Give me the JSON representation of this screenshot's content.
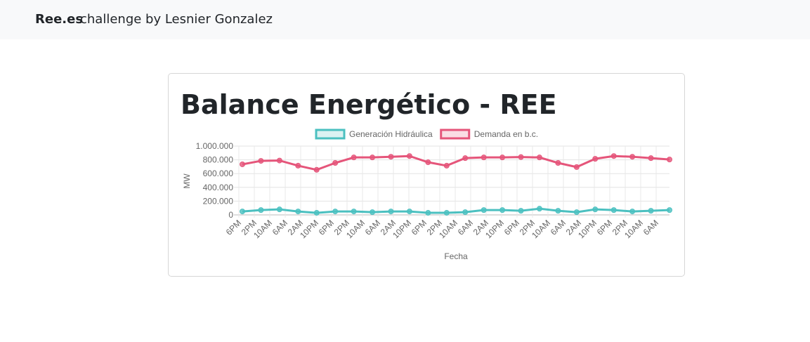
{
  "header": {
    "brand": "Ree.es",
    "text": "challenge by Lesnier Gonzalez"
  },
  "chart_data": {
    "type": "line",
    "title": "Balance Energético - REE",
    "xticks": [
      "6PM",
      "2PM",
      "10AM",
      "6AM",
      "2AM",
      "10PM",
      "6PM",
      "2PM",
      "10AM",
      "6AM",
      "2AM",
      "10PM",
      "6PM",
      "2PM",
      "10AM",
      "6AM",
      "2AM",
      "10PM",
      "6PM",
      "2PM",
      "10AM",
      "6AM",
      "2AM",
      "10PM",
      "6PM",
      "2PM",
      "10AM",
      "6AM"
    ],
    "x_label": "Fecha",
    "y_label": "MW",
    "ylim": [
      0,
      1000000
    ],
    "yticks": [
      0,
      {
        "value": 200000,
        "label": "200.000"
      },
      {
        "value": 400000,
        "label": "400.000"
      },
      {
        "value": 600000,
        "label": "600.000"
      },
      {
        "value": 800000,
        "label": "800.000"
      },
      {
        "value": 1000000,
        "label": "1.000.000"
      }
    ],
    "grid": true,
    "series": [
      {
        "name": "Generación Hidráulica",
        "color": "#4bc0c0",
        "values": [
          50000,
          70000,
          80000,
          50000,
          30000,
          50000,
          50000,
          40000,
          50000,
          50000,
          30000,
          30000,
          40000,
          70000,
          70000,
          60000,
          90000,
          60000,
          40000,
          80000,
          70000,
          50000,
          60000,
          70000
        ]
      },
      {
        "name": "Demanda en b.c.",
        "color": "#e5557a",
        "values": [
          735000,
          785000,
          790000,
          715000,
          655000,
          755000,
          835000,
          835000,
          845000,
          855000,
          765000,
          715000,
          825000,
          835000,
          835000,
          840000,
          835000,
          755000,
          695000,
          815000,
          855000,
          845000,
          825000,
          805000
        ]
      }
    ]
  }
}
